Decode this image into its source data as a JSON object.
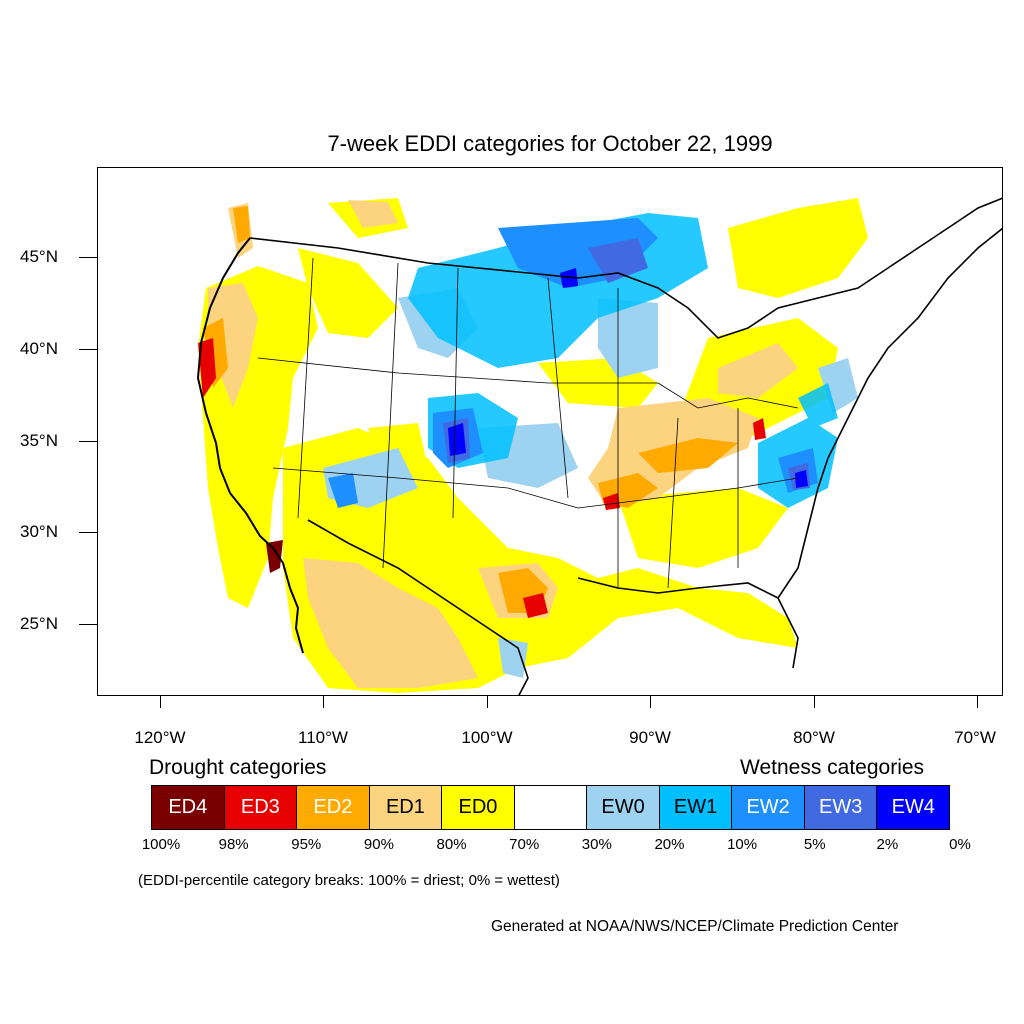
{
  "title": "7-week EDDI categories for October 22, 1999",
  "axes": {
    "lat_labels": [
      "45°N",
      "40°N",
      "35°N",
      "30°N",
      "25°N"
    ],
    "lon_labels": [
      "120°W",
      "110°W",
      "100°W",
      "90°W",
      "80°W",
      "70°W"
    ]
  },
  "legend": {
    "drought_title": "Drought categories",
    "wetness_title": "Wetness categories",
    "categories": [
      {
        "label": "ED4",
        "color": "#7a0000",
        "text_color": "#ffffff"
      },
      {
        "label": "ED3",
        "color": "#e60000",
        "text_color": "#ffffff"
      },
      {
        "label": "ED2",
        "color": "#ffaa00",
        "text_color": "#ffffff"
      },
      {
        "label": "ED1",
        "color": "#fcd37f",
        "text_color": "#000000"
      },
      {
        "label": "ED0",
        "color": "#ffff00",
        "text_color": "#000000"
      },
      {
        "label": "",
        "color": "#ffffff",
        "text_color": "#000000"
      },
      {
        "label": "EW0",
        "color": "#9dd3f0",
        "text_color": "#000000"
      },
      {
        "label": "EW1",
        "color": "#00bfff",
        "text_color": "#000000"
      },
      {
        "label": "EW2",
        "color": "#1e8fff",
        "text_color": "#ffffff"
      },
      {
        "label": "EW3",
        "color": "#4169e1",
        "text_color": "#ffffff"
      },
      {
        "label": "EW4",
        "color": "#0000ff",
        "text_color": "#ffffff"
      }
    ],
    "breaks": [
      "100%",
      "98%",
      "95%",
      "90%",
      "80%",
      "70%",
      "30%",
      "20%",
      "10%",
      "5%",
      "2%",
      "0%"
    ]
  },
  "note": "(EDDI-percentile category breaks: 100% = driest; 0% = wettest)",
  "credit": "Generated at NOAA/NWS/NCEP/Climate Prediction Center"
}
